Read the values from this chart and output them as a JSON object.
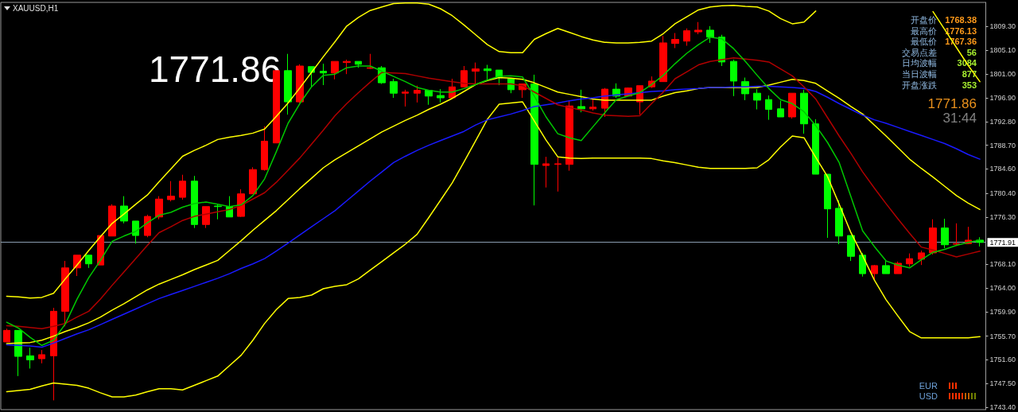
{
  "chart_data": {
    "type": "candlestick",
    "title": "XAUUSD,H1",
    "categories": [
      null,
      null,
      null,
      null,
      null,
      null,
      null,
      null,
      null,
      null,
      null,
      null,
      null,
      null,
      null,
      null,
      null,
      null,
      null,
      null,
      null,
      null,
      null,
      null,
      null,
      null,
      null,
      null,
      null,
      null,
      null,
      null,
      null,
      null,
      null,
      null,
      null,
      null,
      null,
      null,
      null,
      null,
      null,
      null,
      null,
      null,
      null,
      null,
      null,
      null,
      null,
      null,
      null,
      null,
      null,
      null,
      null,
      null,
      null,
      null,
      null,
      null,
      null,
      null,
      null,
      null,
      null,
      null,
      null,
      null,
      null,
      null,
      null,
      null,
      null,
      null,
      null,
      null,
      null,
      null,
      null,
      null,
      null,
      null
    ],
    "ohlc": [
      [
        1754.7,
        1757.0,
        1754.7,
        1756.7
      ],
      [
        1756.7,
        1756.7,
        1748.8,
        1752.2
      ],
      [
        1752.3,
        1753.7,
        1750.1,
        1751.6
      ],
      [
        1751.8,
        1753.3,
        1751.0,
        1752.5
      ],
      [
        1752.3,
        1760.6,
        1744.6,
        1760.0
      ],
      [
        1760.0,
        1768.7,
        1757.4,
        1767.5
      ],
      [
        1767.5,
        1769.7,
        1766.1,
        1769.7
      ],
      [
        1769.7,
        1769.7,
        1767.5,
        1768.2
      ],
      [
        1768.0,
        1773.1,
        1768.0,
        1773.1
      ],
      [
        1773.0,
        1778.5,
        1773.0,
        1778.2
      ],
      [
        1778.2,
        1779.9,
        1775.2,
        1775.6
      ],
      [
        1775.6,
        1775.6,
        1771.7,
        1773.1
      ],
      [
        1773.1,
        1776.7,
        1772.8,
        1776.4
      ],
      [
        1776.3,
        1779.9,
        1775.9,
        1779.4
      ],
      [
        1779.3,
        1782.5,
        1779.0,
        1779.9
      ],
      [
        1779.7,
        1783.6,
        1779.3,
        1782.5
      ],
      [
        1782.5,
        1783.4,
        1774.4,
        1775.0
      ],
      [
        1775.0,
        1778.1,
        1774.4,
        1778.1
      ],
      [
        1778.2,
        1778.5,
        1775.9,
        1778.1
      ],
      [
        1778.1,
        1779.9,
        1776.3,
        1776.3
      ],
      [
        1776.4,
        1781.1,
        1776.3,
        1780.3
      ],
      [
        1780.3,
        1784.9,
        1780.3,
        1784.5
      ],
      [
        1784.5,
        1792.0,
        1784.3,
        1789.4
      ],
      [
        1789.1,
        1801.6,
        1789.1,
        1801.6
      ],
      [
        1801.6,
        1804.5,
        1794.0,
        1796.2
      ],
      [
        1796.2,
        1802.7,
        1796.0,
        1802.4
      ],
      [
        1802.3,
        1802.3,
        1798.7,
        1801.3
      ],
      [
        1801.5,
        1802.8,
        1799.1,
        1801.2
      ],
      [
        1801.2,
        1803.2,
        1800.1,
        1803.2
      ],
      [
        1803.0,
        1803.5,
        1801.0,
        1803.2
      ],
      [
        1803.2,
        1803.2,
        1802.1,
        1802.7
      ],
      [
        1802.0,
        1804.5,
        1801.9,
        1802.1
      ],
      [
        1802.1,
        1802.4,
        1799.3,
        1799.5
      ],
      [
        1799.7,
        1800.2,
        1796.9,
        1797.7
      ],
      [
        1797.7,
        1798.3,
        1795.4,
        1797.9
      ],
      [
        1797.7,
        1799.0,
        1796.1,
        1798.2
      ],
      [
        1798.2,
        1798.2,
        1795.7,
        1797.2
      ],
      [
        1797.3,
        1798.4,
        1796.1,
        1796.9
      ],
      [
        1796.9,
        1800.2,
        1796.8,
        1798.8
      ],
      [
        1798.8,
        1802.4,
        1798.7,
        1801.6
      ],
      [
        1801.5,
        1803.0,
        1799.1,
        1801.9
      ],
      [
        1801.9,
        1802.6,
        1800.1,
        1801.6
      ],
      [
        1801.7,
        1801.7,
        1799.1,
        1800.4
      ],
      [
        1800.2,
        1800.2,
        1797.7,
        1798.3
      ],
      [
        1798.3,
        1799.3,
        1796.9,
        1799.3
      ],
      [
        1799.3,
        1800.9,
        1778.3,
        1785.4
      ],
      [
        1785.2,
        1786.7,
        1781.4,
        1785.5
      ],
      [
        1785.4,
        1786.7,
        1780.7,
        1785.5
      ],
      [
        1785.4,
        1796.4,
        1784.3,
        1795.5
      ],
      [
        1795.4,
        1798.3,
        1794.4,
        1795.0
      ],
      [
        1795.0,
        1796.6,
        1794.7,
        1795.3
      ],
      [
        1795.1,
        1798.6,
        1793.6,
        1798.4
      ],
      [
        1798.4,
        1799.4,
        1796.9,
        1797.2
      ],
      [
        1797.2,
        1798.7,
        1797.2,
        1798.6
      ],
      [
        1796.2,
        1799.0,
        1794.0,
        1799.0
      ],
      [
        1798.8,
        1800.6,
        1798.6,
        1799.8
      ],
      [
        1799.7,
        1807.6,
        1799.7,
        1806.4
      ],
      [
        1806.3,
        1808.1,
        1805.5,
        1807.0
      ],
      [
        1806.7,
        1808.9,
        1805.9,
        1808.5
      ],
      [
        1808.3,
        1810.0,
        1807.9,
        1808.6
      ],
      [
        1808.6,
        1809.3,
        1806.4,
        1807.4
      ],
      [
        1807.4,
        1807.8,
        1802.4,
        1803.1
      ],
      [
        1803.2,
        1803.5,
        1797.2,
        1799.8
      ],
      [
        1799.7,
        1800.4,
        1796.5,
        1797.6
      ],
      [
        1797.7,
        1798.4,
        1794.9,
        1796.5
      ],
      [
        1796.6,
        1797.3,
        1793.1,
        1794.9
      ],
      [
        1795.0,
        1796.4,
        1793.6,
        1793.6
      ],
      [
        1793.6,
        1797.7,
        1793.3,
        1797.7
      ],
      [
        1797.7,
        1798.3,
        1790.7,
        1792.4
      ],
      [
        1792.4,
        1793.2,
        1783.7,
        1783.7
      ],
      [
        1783.7,
        1783.7,
        1772.7,
        1777.7
      ],
      [
        1777.8,
        1779.2,
        1771.6,
        1773.0
      ],
      [
        1773.1,
        1773.1,
        1768.7,
        1769.5
      ],
      [
        1769.7,
        1770.1,
        1766.0,
        1766.5
      ],
      [
        1766.5,
        1768.0,
        1765.5,
        1767.9
      ],
      [
        1767.9,
        1768.7,
        1766.5,
        1766.5
      ],
      [
        1766.5,
        1768.6,
        1766.5,
        1768.3
      ],
      [
        1768.2,
        1770.0,
        1767.7,
        1769.1
      ],
      [
        1769.0,
        1770.5,
        1768.0,
        1770.1
      ],
      [
        1770.1,
        1775.9,
        1769.8,
        1774.4
      ],
      [
        1774.4,
        1776.0,
        1770.9,
        1771.5
      ],
      [
        1771.6,
        1775.2,
        1771.3,
        1771.7
      ],
      [
        1771.7,
        1774.6,
        1771.6,
        1772.3
      ],
      [
        1772.3,
        1772.8,
        1771.2,
        1771.9
      ]
    ],
    "colors": [
      "#ff0000",
      "#00ff00",
      "#00ff00",
      "#ff0000",
      "#ff0000",
      "#ff0000",
      "#ff0000",
      "#00ff00",
      "#ff0000",
      "#ff0000",
      "#00ff00",
      "#00ff00",
      "#ff0000",
      "#ff0000",
      "#ff0000",
      "#ff0000",
      "#00ff00",
      "#ff0000",
      "#00ff00",
      "#00ff00",
      "#ff0000",
      "#ff0000",
      "#ff0000",
      "#ff0000",
      "#00ff00",
      "#ff0000",
      "#00ff00",
      "#00ff00",
      "#ff0000",
      "#ff0000",
      "#00ff00",
      "#ff0000",
      "#00ff00",
      "#00ff00",
      "#ff0000",
      "#ff0000",
      "#00ff00",
      "#00ff00",
      "#ff0000",
      "#ff0000",
      "#ff0000",
      "#00ff00",
      "#00ff00",
      "#00ff00",
      "#ff0000",
      "#00ff00",
      "#ff0000",
      "#ff0000",
      "#ff0000",
      "#00ff00",
      "#ff0000",
      "#ff0000",
      "#00ff00",
      "#ff0000",
      "#ff0000",
      "#ff0000",
      "#ff0000",
      "#ff0000",
      "#ff0000",
      "#ff0000",
      "#00ff00",
      "#00ff00",
      "#00ff00",
      "#00ff00",
      "#00ff00",
      "#00ff00",
      "#00ff00",
      "#ff0000",
      "#00ff00",
      "#00ff00",
      "#00ff00",
      "#00ff00",
      "#00ff00",
      "#00ff00",
      "#ff0000",
      "#00ff00",
      "#ff0000",
      "#ff0000",
      "#ff0000",
      "#ff0000",
      "#00ff00",
      "#ff0000",
      "#ff0000",
      "#00ff00"
    ],
    "series": [
      {
        "type": "line",
        "color": "#ffff00",
        "values": [
          1762.6,
          1762.5,
          1762.3,
          1762.4,
          1763.1,
          1765.6,
          1768.0,
          1770.5,
          1772.9,
          1775.2,
          1776.8,
          1778.5,
          1780.1,
          1782.4,
          1784.6,
          1786.8,
          1787.8,
          1788.7,
          1789.7,
          1790.1,
          1790.4,
          1790.8,
          1791.5,
          1793.7,
          1796.0,
          1798.6,
          1801.3,
          1804.0,
          1806.6,
          1809.3,
          1810.8,
          1812.0,
          1812.6,
          1813.2,
          1813.3,
          1813.3,
          1813.1,
          1812.3,
          1811.1,
          1809.5,
          1807.8,
          1806.1,
          1804.9,
          1804.7,
          1804.7,
          1807.0,
          1808.0,
          1808.9,
          1808.2,
          1807.5,
          1806.9,
          1806.5,
          1806.4,
          1806.4,
          1806.5,
          1806.7,
          1808.0,
          1809.7,
          1810.9,
          1812.1,
          1812.6,
          1812.8,
          1812.9,
          1812.7,
          1812.6,
          1811.9,
          1810.6,
          1809.7,
          1810.0,
          1811.9,
          null,
          null,
          null,
          null,
          null,
          null,
          null,
          null,
          null,
          1811.8,
          1808.7,
          1805.6,
          1802.5,
          1799.7
        ]
      },
      {
        "type": "line",
        "color": "#ffff00",
        "values": [
          1754.4,
          1754.5,
          1754.6,
          1755.0,
          1755.7,
          1756.5,
          1757.2,
          1758.0,
          1759.0,
          1760.2,
          1761.3,
          1762.5,
          1763.7,
          1764.7,
          1765.5,
          1766.3,
          1767.2,
          1768.0,
          1768.8,
          1770.5,
          1772.2,
          1774.0,
          1775.7,
          1777.4,
          1779.3,
          1781.2,
          1783.0,
          1784.8,
          1786.2,
          1787.4,
          1788.6,
          1789.8,
          1791.0,
          1792.0,
          1793.0,
          1793.9,
          1794.9,
          1795.8,
          1796.8,
          1798.0,
          1799.2,
          1799.9,
          1800.4,
          1800.3,
          1800.1,
          1799.5,
          1798.7,
          1797.9,
          1797.5,
          1797.1,
          1796.7,
          1796.5,
          1796.5,
          1796.5,
          1796.5,
          1796.5,
          1797.2,
          1797.8,
          1798.1,
          1798.5,
          1798.7,
          1798.7,
          1798.7,
          1798.7,
          1798.7,
          1799.1,
          1799.6,
          1800.1,
          1799.9,
          1799.4,
          1798.1,
          1796.8,
          1795.4,
          1794.1,
          1792.2,
          1790.3,
          1788.3,
          1786.3,
          1784.7,
          1783.2,
          1781.6,
          1780.0,
          1778.7,
          1777.6
        ]
      },
      {
        "type": "line",
        "color": "#ffff00",
        "values": [
          1746.1,
          1746.3,
          1746.5,
          1747.1,
          1747.6,
          1747.4,
          1747.2,
          1746.7,
          1745.9,
          1745.2,
          1745.2,
          1745.5,
          1746.1,
          1746.6,
          1746.6,
          1746.4,
          1747.2,
          1748.0,
          1748.8,
          1750.6,
          1752.4,
          1755.0,
          1757.9,
          1760.3,
          1762.2,
          1762.4,
          1762.8,
          1763.9,
          1764.3,
          1764.6,
          1765.6,
          1767.1,
          1768.6,
          1770.1,
          1771.6,
          1773.3,
          1776.2,
          1779.2,
          1782.2,
          1785.8,
          1789.5,
          1793.2,
          1795.8,
          1796.0,
          1796.2,
          1792.9,
          1789.6,
          1786.7,
          1786.5,
          1786.4,
          1786.5,
          1786.5,
          1786.5,
          1786.5,
          1786.5,
          1786.4,
          1786.0,
          1785.7,
          1785.3,
          1784.9,
          1784.7,
          1784.7,
          1784.7,
          1784.7,
          1784.8,
          1786.2,
          1788.4,
          1790.3,
          1790.0,
          1786.6,
          1783.3,
          1778.5,
          1773.6,
          1769.6,
          1765.4,
          1762.0,
          1759.2,
          1756.5,
          1755.4,
          1755.4,
          1755.4,
          1755.4,
          1755.4,
          1755.6
        ]
      },
      {
        "type": "line",
        "color": "#1a1aff",
        "values": [
          1754.2,
          1754.1,
          1754.0,
          1753.8,
          1754.5,
          1755.3,
          1756.1,
          1756.8,
          1757.7,
          1758.6,
          1759.5,
          1760.4,
          1761.3,
          1762.2,
          1762.9,
          1763.6,
          1764.3,
          1765.0,
          1765.7,
          1766.5,
          1767.4,
          1768.2,
          1769.1,
          1770.4,
          1771.8,
          1773.2,
          1774.6,
          1776.0,
          1777.4,
          1779.1,
          1780.8,
          1782.5,
          1784.1,
          1785.7,
          1786.8,
          1787.8,
          1788.7,
          1789.5,
          1790.3,
          1791.1,
          1792.2,
          1793.1,
          1793.6,
          1794.1,
          1794.7,
          1795.4,
          1795.7,
          1796.0,
          1796.4,
          1796.7,
          1796.9,
          1797.2,
          1797.4,
          1797.6,
          1797.8,
          1798.0,
          1798.1,
          1798.3,
          1798.4,
          1798.5,
          1798.7,
          1798.7,
          1798.8,
          1798.8,
          1798.9,
          1798.9,
          1798.8,
          1798.7,
          1798.5,
          1798.0,
          1797.0,
          1795.9,
          1794.9,
          1793.9,
          1793.1,
          1792.5,
          1791.8,
          1791.1,
          1790.4,
          1789.7,
          1789.0,
          1788.1,
          1787.1,
          1786.3
        ]
      },
      {
        "type": "line",
        "color": "#b00000",
        "values": [
          1757.5,
          1757.4,
          1757.2,
          1757.0,
          1757.4,
          1757.9,
          1759.0,
          1760.0,
          1762.1,
          1764.5,
          1766.8,
          1769.1,
          1771.4,
          1773.6,
          1774.6,
          1775.7,
          1776.4,
          1776.8,
          1777.2,
          1777.6,
          1778.3,
          1779.4,
          1780.5,
          1782.3,
          1784.4,
          1786.5,
          1788.9,
          1791.3,
          1793.8,
          1795.9,
          1797.8,
          1799.6,
          1801.3,
          1801.2,
          1801.1,
          1800.7,
          1800.3,
          1800.0,
          1799.7,
          1799.4,
          1799.3,
          1799.3,
          1799.3,
          1799.3,
          1799.0,
          1797.9,
          1796.8,
          1795.7,
          1795.2,
          1794.8,
          1794.3,
          1793.9,
          1793.8,
          1793.7,
          1793.8,
          1795.9,
          1797.9,
          1800.2,
          1801.4,
          1802.6,
          1803.2,
          1803.5,
          1803.8,
          1803.6,
          1803.4,
          1803.1,
          1801.9,
          1800.7,
          1798.8,
          1796.7,
          1793.5,
          1790.3,
          1787.3,
          1784.1,
          1781.3,
          1778.6,
          1776.0,
          1773.5,
          1771.1,
          1770.6,
          1770.0,
          1769.4,
          1769.9,
          1770.4
        ]
      },
      {
        "type": "line",
        "color": "#00c800",
        "values": [
          1758.1,
          1757.1,
          1755.5,
          1754.1,
          1755.0,
          1757.8,
          1762.1,
          1765.8,
          1768.8,
          1772.1,
          1773.0,
          1773.8,
          1775.3,
          1776.6,
          1777.1,
          1778.0,
          1778.6,
          1778.9,
          1778.5,
          1778.1,
          1778.4,
          1780.0,
          1782.9,
          1787.6,
          1792.5,
          1795.9,
          1798.8,
          1800.8,
          1801.0,
          1802.1,
          1802.4,
          1802.4,
          1801.5,
          1800.6,
          1799.7,
          1798.7,
          1798.2,
          1797.9,
          1797.9,
          1798.5,
          1799.2,
          1800.0,
          1800.6,
          1800.7,
          1800.5,
          1797.2,
          1793.6,
          1790.7,
          1790.0,
          1789.5,
          1791.9,
          1794.3,
          1796.6,
          1797.2,
          1797.8,
          1799.2,
          1800.8,
          1802.8,
          1804.6,
          1806.1,
          1807.4,
          1807.1,
          1805.4,
          1803.2,
          1800.8,
          1798.5,
          1796.6,
          1795.9,
          1794.5,
          1792.1,
          1789.2,
          1785.7,
          1779.8,
          1773.9,
          1771.2,
          1768.7,
          1768.0,
          1767.5,
          1768.9,
          1770.2,
          1770.7,
          1771.4,
          1771.9,
          1772.3
        ]
      }
    ],
    "ylim": [
      1743.0,
      1813.4
    ],
    "yticks": [
      {
        "value": 1743.4,
        "label": "1743.40"
      },
      {
        "value": 1747.5,
        "label": "1747.50"
      },
      {
        "value": 1751.6,
        "label": "1751.60"
      },
      {
        "value": 1755.7,
        "label": "1755.70"
      },
      {
        "value": 1759.9,
        "label": "1759.90"
      },
      {
        "value": 1764.0,
        "label": "1764.00"
      },
      {
        "value": 1768.1,
        "label": "1768.10"
      },
      {
        "value": 1776.3,
        "label": "1776.30"
      },
      {
        "value": 1780.4,
        "label": "1780.40"
      },
      {
        "value": 1784.6,
        "label": "1784.60"
      },
      {
        "value": 1788.7,
        "label": "1788.70"
      },
      {
        "value": 1792.8,
        "label": "1792.80"
      },
      {
        "value": 1796.9,
        "label": "1796.90"
      },
      {
        "value": 1801.0,
        "label": "1801.00"
      },
      {
        "value": 1805.1,
        "label": "1805.10"
      },
      {
        "value": 1809.3,
        "label": "1809.30"
      }
    ],
    "tick_labels": "y",
    "grid": false,
    "ref_lines": [
      {
        "axis": "y",
        "value": 1771.91,
        "label": "1771.91",
        "color": "#8a9cb0"
      }
    ],
    "annotations": [
      "1771.86",
      "开盘价",
      "1768.38",
      "最高价",
      "1776.13",
      "最低价",
      "1767.36",
      "交易点差",
      "56",
      "日均波幅",
      "3084",
      "当日波幅",
      "877",
      "开盘涨跌",
      "353",
      "1771.86",
      "31:44",
      "EUR",
      "USD"
    ]
  }
}
